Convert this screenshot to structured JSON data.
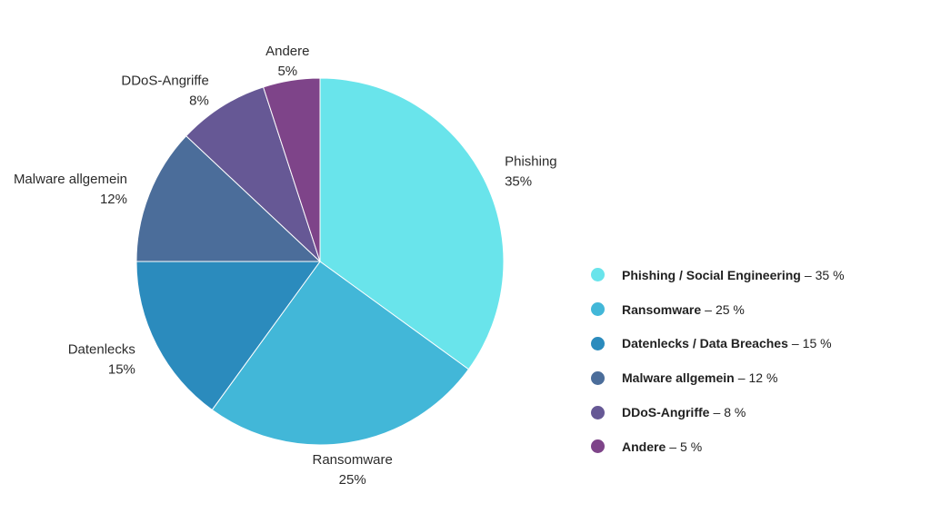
{
  "chart_data": {
    "type": "pie",
    "slices": [
      {
        "label": "Phishing",
        "value": 35,
        "value_label": "35%",
        "color": "#69E4EB"
      },
      {
        "label": "Ransomware",
        "value": 25,
        "value_label": "25%",
        "color": "#42B7D8"
      },
      {
        "label": "Datenlecks",
        "value": 15,
        "value_label": "15%",
        "color": "#2B8BBD"
      },
      {
        "label": "Malware allgemein",
        "value": 12,
        "value_label": "12%",
        "color": "#4B6D9A"
      },
      {
        "label": "DDoS-Angriffe",
        "value": 8,
        "value_label": "8%",
        "color": "#665895"
      },
      {
        "label": "Andere",
        "value": 5,
        "value_label": "5%",
        "color": "#7E4489"
      }
    ],
    "start_angle_deg": 0,
    "direction": "clockwise",
    "legend_position": "right",
    "legend": [
      {
        "name": "Phishing / Social Engineering",
        "sep": "–",
        "value": "35 %",
        "color": "#69E4EB"
      },
      {
        "name": "Ransomware",
        "sep": "–",
        "value": "25 %",
        "color": "#42B7D8"
      },
      {
        "name": "Datenlecks / Data Breaches",
        "sep": "–",
        "value": "15 %",
        "color": "#2B8BBD"
      },
      {
        "name": "Malware allgemein",
        "sep": "–",
        "value": "12 %",
        "color": "#4B6D9A"
      },
      {
        "name": "DDoS-Angriffe",
        "sep": "–",
        "value": "8 %",
        "color": "#665895"
      },
      {
        "name": "Andere",
        "sep": "–",
        "value": "5 %",
        "color": "#7E4489"
      }
    ]
  }
}
